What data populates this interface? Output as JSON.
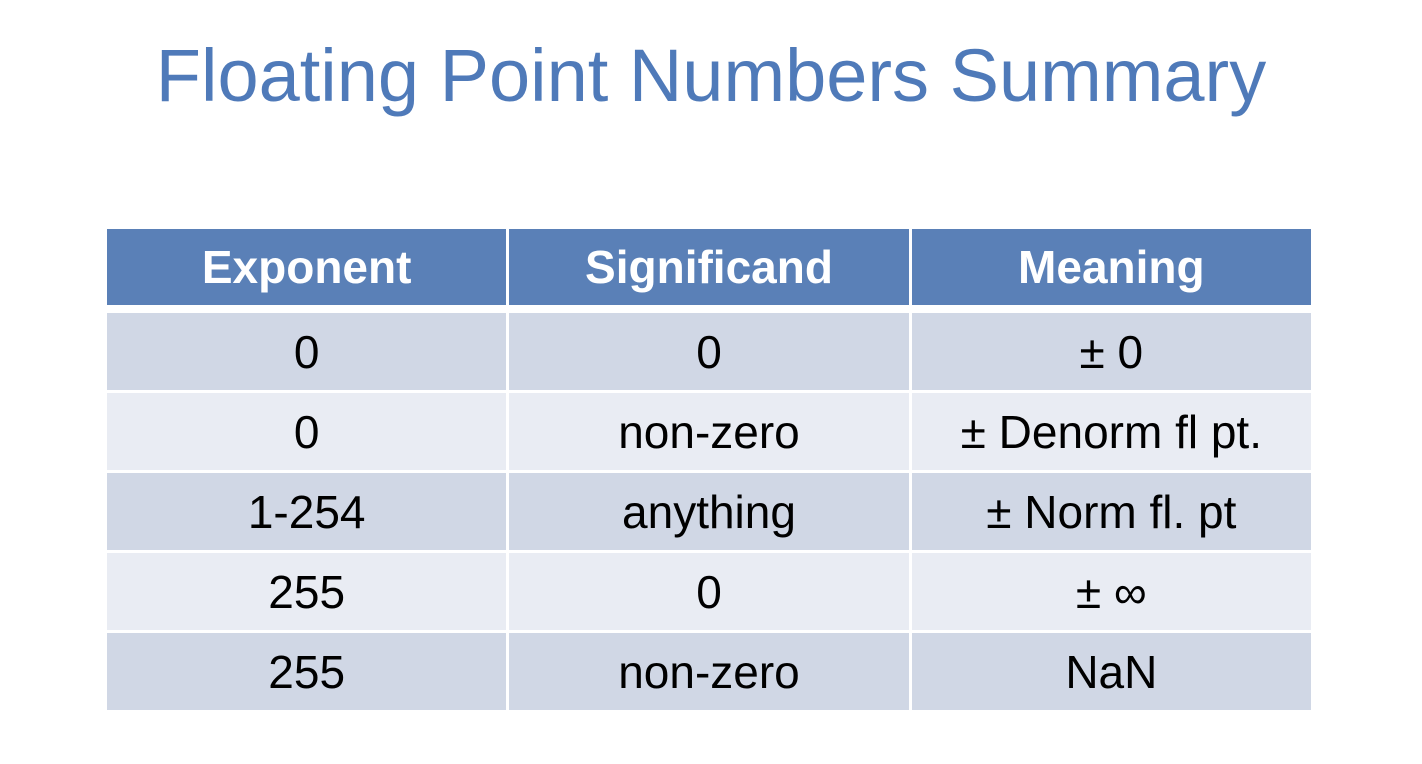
{
  "title": "Floating Point Numbers Summary",
  "table": {
    "headers": [
      "Exponent",
      "Significand",
      "Meaning"
    ],
    "rows": [
      [
        "0",
        "0",
        "± 0"
      ],
      [
        "0",
        "non-zero",
        "± Denorm fl pt."
      ],
      [
        "1-254",
        "anything",
        "± Norm fl. pt"
      ],
      [
        "255",
        "0",
        "± ∞"
      ],
      [
        "255",
        "non-zero",
        "NaN"
      ]
    ]
  },
  "colors": {
    "title": "#4f7ab9",
    "header_bg": "#5a80b7",
    "row_dark": "#d0d7e5",
    "row_light": "#e9ecf3"
  }
}
